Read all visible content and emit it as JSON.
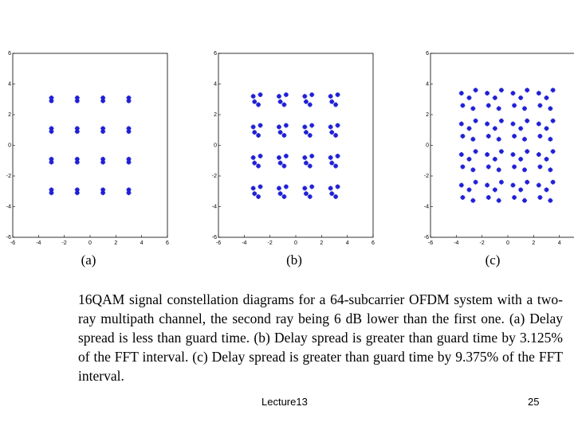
{
  "chart_data": [
    {
      "type": "scatter",
      "xlabel": "(a)",
      "color": "#1f1fd6",
      "xlim": [
        -6,
        6
      ],
      "ylim": [
        -6,
        6
      ],
      "xticks": [
        -6,
        -4,
        -2,
        0,
        2,
        4,
        6
      ],
      "yticks": [
        -6,
        -4,
        -2,
        0,
        2,
        4,
        6
      ],
      "x": [
        -3,
        -3,
        -1,
        -1,
        1,
        1,
        3,
        3,
        -3,
        -3,
        -1,
        -1,
        1,
        1,
        3,
        3,
        -3,
        -3,
        -1,
        -1,
        1,
        1,
        3,
        3,
        -3,
        -3,
        -1,
        -1,
        1,
        1,
        3,
        3
      ],
      "y": [
        3.1,
        2.9,
        3.1,
        2.9,
        3.1,
        2.9,
        3.1,
        2.9,
        1.1,
        0.9,
        1.1,
        0.9,
        1.1,
        0.9,
        1.1,
        0.9,
        -0.9,
        -1.1,
        -0.9,
        -1.1,
        -0.9,
        -1.1,
        -0.9,
        -1.1,
        -2.9,
        -3.1,
        -2.9,
        -3.1,
        -2.9,
        -3.1,
        -2.9,
        -3.1
      ]
    },
    {
      "type": "scatter",
      "xlabel": "(b)",
      "color": "#1f1fd6",
      "xlim": [
        -6,
        6
      ],
      "ylim": [
        -6,
        6
      ],
      "xticks": [
        -6,
        -4,
        -2,
        0,
        2,
        4,
        6
      ],
      "yticks": [
        -6,
        -4,
        -2,
        0,
        2,
        4,
        6
      ],
      "x": [
        -3.3,
        -2.75,
        -2.9,
        -3.2,
        -1.3,
        -0.75,
        -0.9,
        -1.2,
        0.7,
        1.25,
        1.1,
        0.8,
        2.7,
        3.25,
        3.1,
        2.8,
        -3.3,
        -2.75,
        -2.9,
        -3.2,
        -1.3,
        -0.75,
        -0.9,
        -1.2,
        0.7,
        1.25,
        1.1,
        0.8,
        2.7,
        3.25,
        3.1,
        2.8,
        -3.3,
        -2.75,
        -2.9,
        -3.2,
        -1.3,
        -0.75,
        -0.9,
        -1.2,
        0.7,
        1.25,
        1.1,
        0.8,
        2.7,
        3.25,
        3.1,
        2.8,
        -3.3,
        -2.75,
        -2.9,
        -3.2,
        -1.3,
        -0.75,
        -0.9,
        -1.2,
        0.7,
        1.25,
        1.1,
        0.8,
        2.7,
        3.25,
        3.1,
        2.8
      ],
      "y": [
        3.2,
        3.3,
        2.65,
        2.85,
        3.2,
        3.3,
        2.65,
        2.85,
        3.2,
        3.3,
        2.65,
        2.85,
        3.2,
        3.3,
        2.65,
        2.85,
        1.2,
        1.3,
        0.65,
        0.85,
        1.2,
        1.3,
        0.65,
        0.85,
        1.2,
        1.3,
        0.65,
        0.85,
        1.2,
        1.3,
        0.65,
        0.85,
        -0.8,
        -0.7,
        -1.35,
        -1.15,
        -0.8,
        -0.7,
        -1.35,
        -1.15,
        -0.8,
        -0.7,
        -1.35,
        -1.15,
        -0.8,
        -0.7,
        -1.35,
        -1.15,
        -2.8,
        -2.7,
        -3.35,
        -3.15,
        -2.8,
        -2.7,
        -3.35,
        -3.15,
        -2.8,
        -2.7,
        -3.35,
        -3.15,
        -2.8,
        -2.7,
        -3.35,
        -3.15
      ]
    },
    {
      "type": "scatter",
      "xlabel": "(c)",
      "color": "#1f1fd6",
      "xlim": [
        -6,
        6
      ],
      "ylim": [
        -6,
        6
      ],
      "xticks": [
        -6,
        -4,
        -2,
        0,
        2,
        4
      ],
      "yticks": [
        -6,
        -4,
        -2,
        0,
        2,
        4,
        6
      ],
      "x": [
        -3.6,
        -2.5,
        -2.7,
        -3.5,
        -3,
        -1.6,
        -0.5,
        -0.7,
        -1.5,
        -1,
        0.4,
        1.5,
        1.3,
        0.5,
        1,
        2.4,
        3.5,
        3.3,
        2.5,
        3,
        -3.6,
        -2.5,
        -2.7,
        -3.5,
        -3,
        -1.6,
        -0.5,
        -0.7,
        -1.5,
        -1,
        0.4,
        1.5,
        1.3,
        0.5,
        1,
        2.4,
        3.5,
        3.3,
        2.5,
        3,
        -3.6,
        -2.5,
        -2.7,
        -3.5,
        -3,
        -1.6,
        -0.5,
        -0.7,
        -1.5,
        -1,
        0.4,
        1.5,
        1.3,
        0.5,
        1,
        2.4,
        3.5,
        3.3,
        2.5,
        3,
        -3.6,
        -2.5,
        -2.7,
        -3.5,
        -3,
        -1.6,
        -0.5,
        -0.7,
        -1.5,
        -1,
        0.4,
        1.5,
        1.3,
        0.5,
        1,
        2.4,
        3.5,
        3.3,
        2.5,
        3
      ],
      "y": [
        3.4,
        3.6,
        2.4,
        2.6,
        3.1,
        3.4,
        3.6,
        2.4,
        2.6,
        3.1,
        3.4,
        3.6,
        2.4,
        2.6,
        3.1,
        3.4,
        3.6,
        2.4,
        2.6,
        3.1,
        1.4,
        1.6,
        0.4,
        0.6,
        1.1,
        1.4,
        1.6,
        0.4,
        0.6,
        1.1,
        1.4,
        1.6,
        0.4,
        0.6,
        1.1,
        1.4,
        1.6,
        0.4,
        0.6,
        1.1,
        -0.6,
        -0.4,
        -1.6,
        -1.4,
        -0.9,
        -0.6,
        -0.4,
        -1.6,
        -1.4,
        -0.9,
        -0.6,
        -0.4,
        -1.6,
        -1.4,
        -0.9,
        -0.6,
        -0.4,
        -1.6,
        -1.4,
        -0.9,
        -2.6,
        -2.4,
        -3.6,
        -3.4,
        -2.9,
        -2.6,
        -2.4,
        -3.6,
        -3.4,
        -2.9,
        -2.6,
        -2.4,
        -3.6,
        -3.4,
        -2.9,
        -2.6,
        -2.4,
        -3.6,
        -3.4,
        -2.9
      ]
    }
  ],
  "caption": "16QAM signal constellation diagrams for a 64-subcarrier OFDM system with a two-ray multipath channel, the second ray being 6 dB lower than the first one. (a) Delay spread is less than guard time. (b) Delay spread is greater than guard time by 3.125% of the FFT interval. (c) Delay spread is greater than guard time by 9.375% of the FFT interval.",
  "footer": {
    "lecture": "Lecture13",
    "page": "25"
  }
}
